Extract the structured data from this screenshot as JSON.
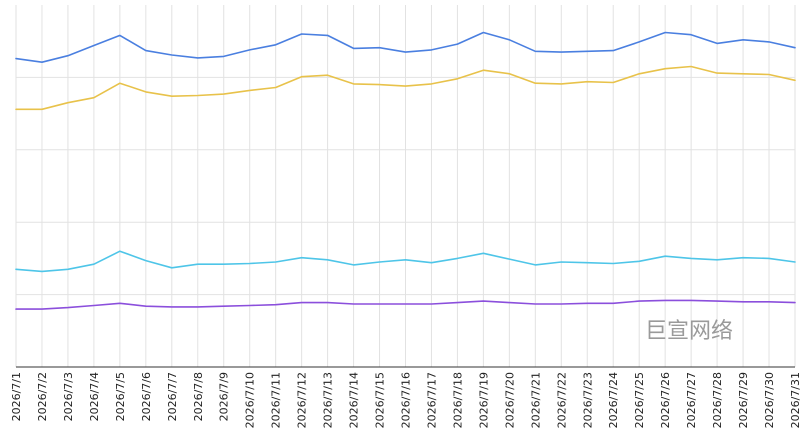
{
  "chart_data": {
    "type": "line",
    "x": [
      "2026/7/1",
      "2026/7/2",
      "2026/7/3",
      "2026/7/4",
      "2026/7/5",
      "2026/7/6",
      "2026/7/7",
      "2026/7/8",
      "2026/7/9",
      "2026/7/10",
      "2026/7/11",
      "2026/7/12",
      "2026/7/13",
      "2026/7/14",
      "2026/7/15",
      "2026/7/16",
      "2026/7/17",
      "2026/7/18",
      "2026/7/19",
      "2026/7/20",
      "2026/7/21",
      "2026/7/22",
      "2026/7/23",
      "2026/7/24",
      "2026/7/25",
      "2026/7/26",
      "2026/7/27",
      "2026/7/28",
      "2026/7/29",
      "2026/7/30",
      "2026/7/31"
    ],
    "ylim": [
      0,
      5
    ],
    "grid": true,
    "y_gridlines": [
      1,
      2,
      3,
      4
    ],
    "series": [
      {
        "color": "#4a7fe0",
        "values": [
          4.26,
          4.21,
          4.3,
          4.44,
          4.58,
          4.37,
          4.31,
          4.27,
          4.29,
          4.38,
          4.45,
          4.6,
          4.58,
          4.4,
          4.41,
          4.35,
          4.38,
          4.46,
          4.62,
          4.52,
          4.36,
          4.35,
          4.36,
          4.37,
          4.49,
          4.62,
          4.59,
          4.47,
          4.52,
          4.49,
          4.41
        ]
      },
      {
        "color": "#e8c24a",
        "values": [
          3.56,
          3.56,
          3.65,
          3.72,
          3.92,
          3.8,
          3.74,
          3.75,
          3.77,
          3.82,
          3.86,
          4.01,
          4.03,
          3.91,
          3.9,
          3.88,
          3.91,
          3.98,
          4.1,
          4.05,
          3.92,
          3.91,
          3.94,
          3.93,
          4.05,
          4.12,
          4.15,
          4.06,
          4.05,
          4.04,
          3.96
        ]
      },
      {
        "color": "#4ec5e8",
        "values": [
          1.35,
          1.32,
          1.35,
          1.42,
          1.6,
          1.47,
          1.37,
          1.42,
          1.42,
          1.43,
          1.45,
          1.51,
          1.48,
          1.41,
          1.45,
          1.48,
          1.44,
          1.5,
          1.57,
          1.49,
          1.41,
          1.45,
          1.44,
          1.43,
          1.46,
          1.53,
          1.5,
          1.48,
          1.51,
          1.5,
          1.45
        ]
      },
      {
        "color": "#8b4fdc",
        "values": [
          0.8,
          0.8,
          0.82,
          0.85,
          0.88,
          0.84,
          0.83,
          0.83,
          0.84,
          0.85,
          0.86,
          0.89,
          0.89,
          0.87,
          0.87,
          0.87,
          0.87,
          0.89,
          0.91,
          0.89,
          0.87,
          0.87,
          0.88,
          0.88,
          0.91,
          0.92,
          0.92,
          0.91,
          0.9,
          0.9,
          0.89
        ]
      }
    ]
  },
  "watermark": "巨宣网络"
}
